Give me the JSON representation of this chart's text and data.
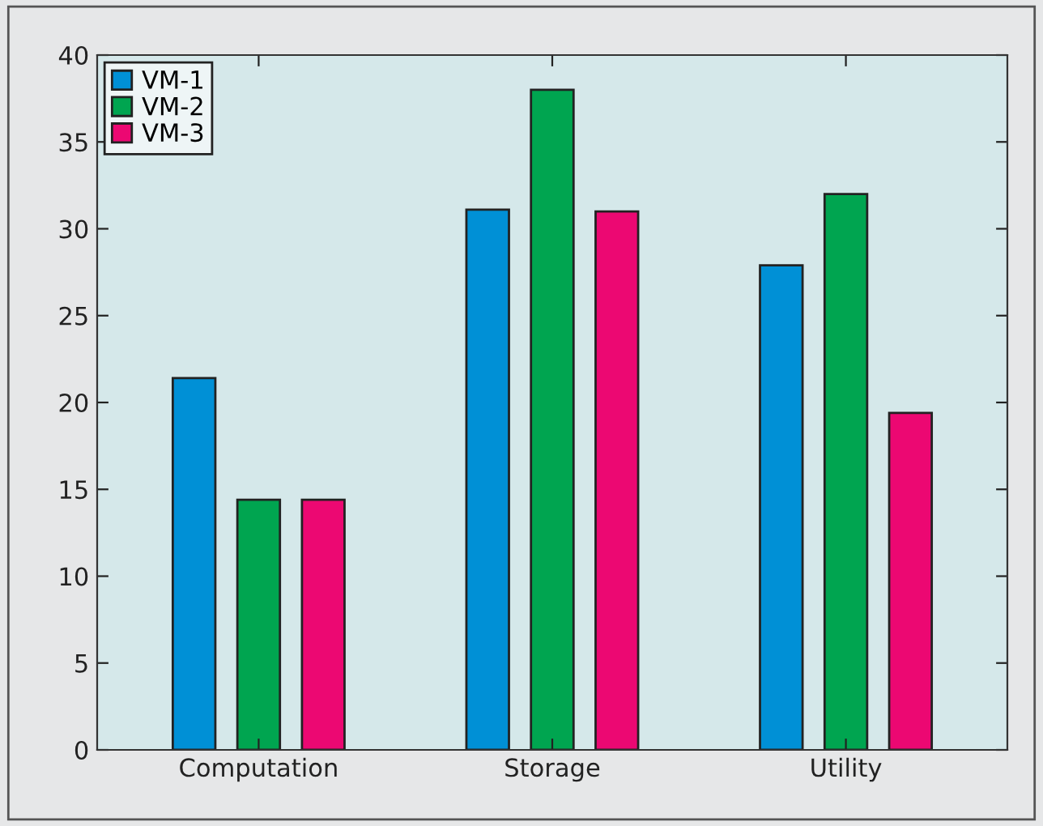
{
  "chart_data": {
    "type": "bar",
    "categories": [
      "Computation",
      "Storage",
      "Utility"
    ],
    "series": [
      {
        "name": "VM-1",
        "color": "#0090d6",
        "values": [
          21.4,
          31.1,
          27.9
        ]
      },
      {
        "name": "VM-2",
        "color": "#00a550",
        "values": [
          14.4,
          38.0,
          32.0
        ]
      },
      {
        "name": "VM-3",
        "color": "#ec0872",
        "values": [
          14.4,
          31.0,
          19.4
        ]
      }
    ],
    "ylim": [
      0,
      40
    ],
    "yticks": [
      0,
      5,
      10,
      15,
      20,
      25,
      30,
      35,
      40
    ],
    "grid": false,
    "legend": "top left"
  }
}
